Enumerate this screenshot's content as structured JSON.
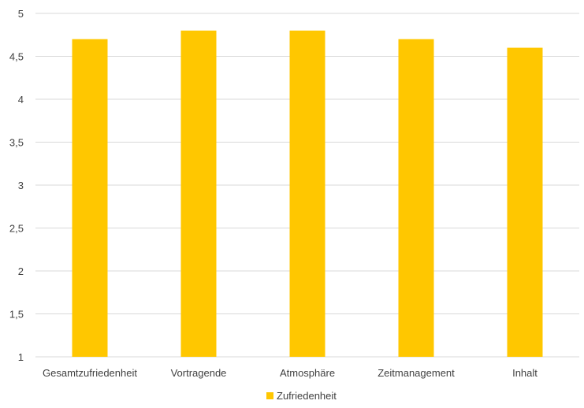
{
  "chart_data": {
    "type": "bar",
    "categories": [
      "Gesamtzufriedenheit",
      "Vortragende",
      "Atmosphäre",
      "Zeitmanagement",
      "Inhalt"
    ],
    "series": [
      {
        "name": "Zufriedenheit",
        "values": [
          4.7,
          4.8,
          4.8,
          4.7,
          4.6
        ],
        "color": "#FFC700"
      }
    ],
    "ylim": [
      1,
      5
    ],
    "yticks": [
      "1",
      "1,5",
      "2",
      "2,5",
      "3",
      "3,5",
      "4",
      "4,5",
      "5"
    ],
    "ytick_values": [
      1,
      1.5,
      2,
      2.5,
      3,
      3.5,
      4,
      4.5,
      5
    ],
    "grid": true,
    "legend_position": "bottom"
  }
}
